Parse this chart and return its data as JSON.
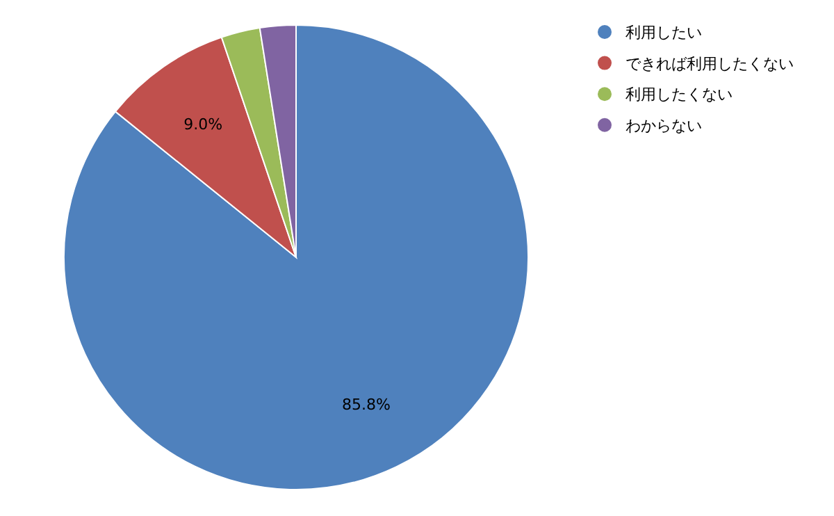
{
  "chart_data": {
    "type": "pie",
    "categories": [
      "利用したい",
      "できれば利用したくない",
      "利用したくない",
      "わからない"
    ],
    "values": [
      85.8,
      9.0,
      2.7,
      2.5
    ],
    "colors": [
      "#4f81bd",
      "#c0504d",
      "#9bbb59",
      "#8064a2"
    ],
    "value_labels": [
      "85.8%",
      "9.0%",
      null,
      null
    ],
    "legend": "top right"
  }
}
